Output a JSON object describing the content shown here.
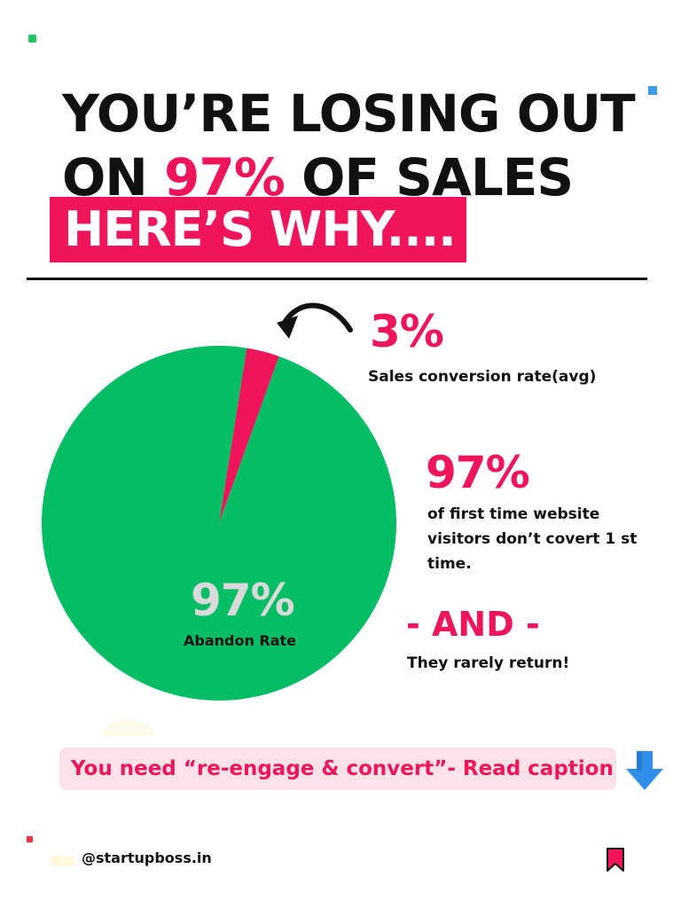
{
  "headline": {
    "line1": "YOU’RE LOSING OUT",
    "line2_prefix": "ON ",
    "line2_accent": "97%",
    "line2_suffix": " OF SALES",
    "banner": "HERE’S WHY...."
  },
  "callouts": {
    "conversion_value": "3%",
    "conversion_label": "Sales conversion rate(avg)",
    "visitors_value": "97%",
    "visitors_label": "of first time website visitors don’t covert 1 st time.",
    "and_text": "- AND -",
    "return_text": "They rarely return!"
  },
  "pie_labels": {
    "abandon_value": "97%",
    "abandon_label": "Abandon Rate"
  },
  "cta": {
    "text": "You need “re-engage & convert”- Read caption"
  },
  "footer": {
    "handle": "@startupboss.in"
  },
  "colors": {
    "accent_pink": "#f0145a",
    "pie_green": "#05bd64",
    "arrow_blue": "#2f8fe8"
  },
  "chart_data": {
    "type": "pie",
    "slices": [
      {
        "label": "Abandon Rate",
        "value": 97,
        "color": "#05bd64"
      },
      {
        "label": "Sales conversion rate(avg)",
        "value": 3,
        "color": "#f0145a"
      }
    ]
  }
}
